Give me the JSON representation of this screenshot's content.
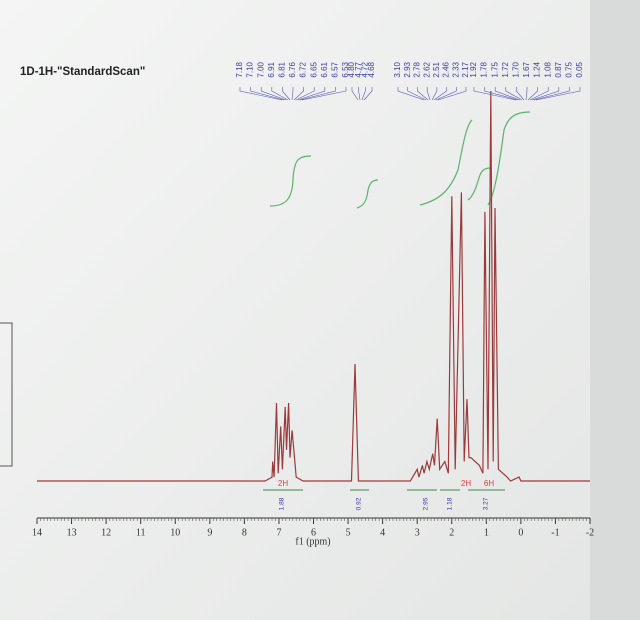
{
  "chart_data": {
    "type": "line",
    "title": "1D-1H-\"StandardScan\"",
    "x_label": "f1 (ppm)",
    "xlim": [
      14,
      -2
    ],
    "xticks": [
      14,
      13,
      12,
      11,
      10,
      9,
      8,
      7,
      6,
      5,
      4,
      3,
      2,
      1,
      0,
      -1,
      -2
    ],
    "ylim": [
      0,
      100
    ],
    "grid": false,
    "series": [
      {
        "color": "#9a3b3b",
        "x": [
          14,
          7.4,
          7.2,
          7.18,
          7.14,
          7.07,
          7.02,
          6.95,
          6.9,
          6.82,
          6.78,
          6.72,
          6.68,
          6.62,
          6.5,
          6.3,
          4.9,
          4.8,
          4.7,
          3.2,
          3.0,
          2.95,
          2.85,
          2.8,
          2.72,
          2.65,
          2.55,
          2.5,
          2.42,
          2.35,
          2.2,
          2.1,
          2.0,
          1.9,
          1.72,
          1.64,
          1.56,
          1.5,
          1.45,
          1.2,
          1.1,
          1.04,
          0.95,
          0.87,
          0.8,
          0.75,
          0.65,
          0.4,
          0.3,
          0.05,
          0,
          -2
        ],
        "values": [
          0,
          0,
          1,
          5,
          1,
          20,
          2,
          14,
          3,
          19,
          8,
          20,
          6,
          13,
          1,
          0,
          0,
          30,
          0,
          0,
          3,
          1,
          4,
          2,
          5,
          3,
          7,
          4,
          16,
          3,
          5,
          2,
          73,
          3,
          74,
          5,
          21,
          6,
          6,
          4,
          2,
          69,
          3,
          100,
          5,
          70,
          3,
          1,
          0,
          1,
          0,
          0
        ]
      }
    ],
    "peak_labels": [
      [
        "7.18",
        "7.10",
        "7.00",
        "6.91",
        "6.81",
        "6.76",
        "6.72",
        "6.65",
        "6.61",
        "6.57",
        "6.53"
      ],
      [
        "4.80",
        "4.77",
        "4.72",
        "4.68"
      ],
      [
        "3.10",
        "2.93",
        "2.78",
        "2.62",
        "2.51",
        "2.46",
        "2.33",
        "2.17"
      ],
      [
        "1.92",
        "1.78",
        "1.75",
        "1.72",
        "1.70",
        "1.67",
        "1.24",
        "1.08",
        "0.87",
        "0.75",
        "0.05"
      ]
    ],
    "multiplicity_labels": [
      "2H",
      "2H",
      "6H"
    ],
    "integral_values": [
      "1.88",
      "0.92",
      "2.95",
      "1.18",
      "3.27"
    ]
  }
}
